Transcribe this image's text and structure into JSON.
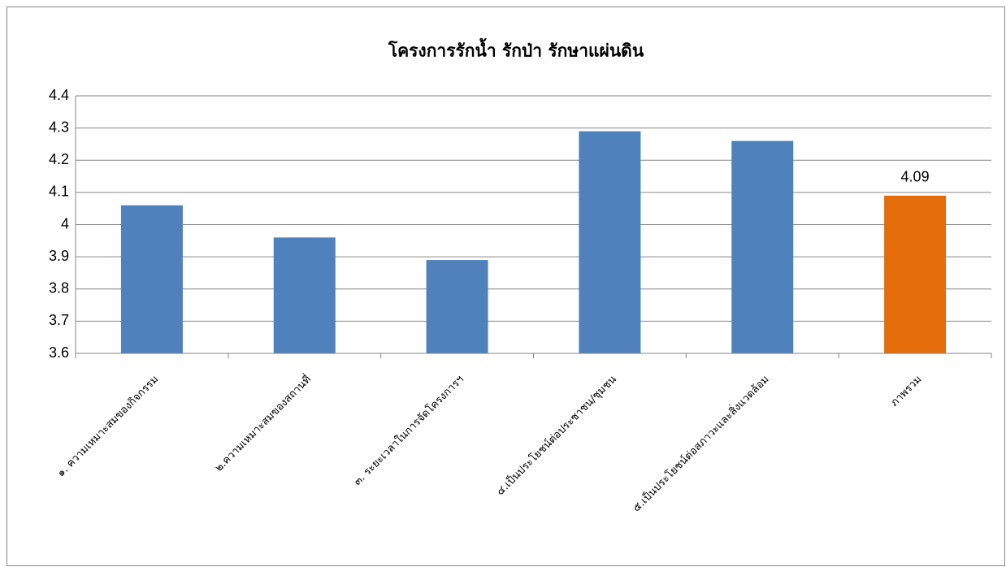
{
  "chart_data": {
    "type": "bar",
    "title": "โครงการรักน้ำ รักป่า รักษาแผ่นดิน",
    "categories": [
      "๑. ความเหมาะสมของกิจกรรม",
      "๒.ความเหมาะสมของสถานที่",
      "๓. ระยะเวลาในการจัดโครงการฯ",
      "๔.เป็นประโยชน์ต่อประชาชน/ชุมชน",
      "๕.เป็นประโยชน์ต่อสภาวะและสิ่งแวดล้อม",
      "ภาพรวม"
    ],
    "values": [
      4.06,
      3.96,
      3.89,
      4.29,
      4.26,
      4.09
    ],
    "value_labels": [
      null,
      null,
      null,
      null,
      null,
      "4.09"
    ],
    "colors": [
      "#4f81bd",
      "#4f81bd",
      "#4f81bd",
      "#4f81bd",
      "#4f81bd",
      "#e46c0a"
    ],
    "ylim": [
      3.6,
      4.4
    ],
    "yticks": [
      3.6,
      3.7,
      3.8,
      3.9,
      4,
      4.1,
      4.2,
      4.3,
      4.4
    ],
    "grid": true
  }
}
